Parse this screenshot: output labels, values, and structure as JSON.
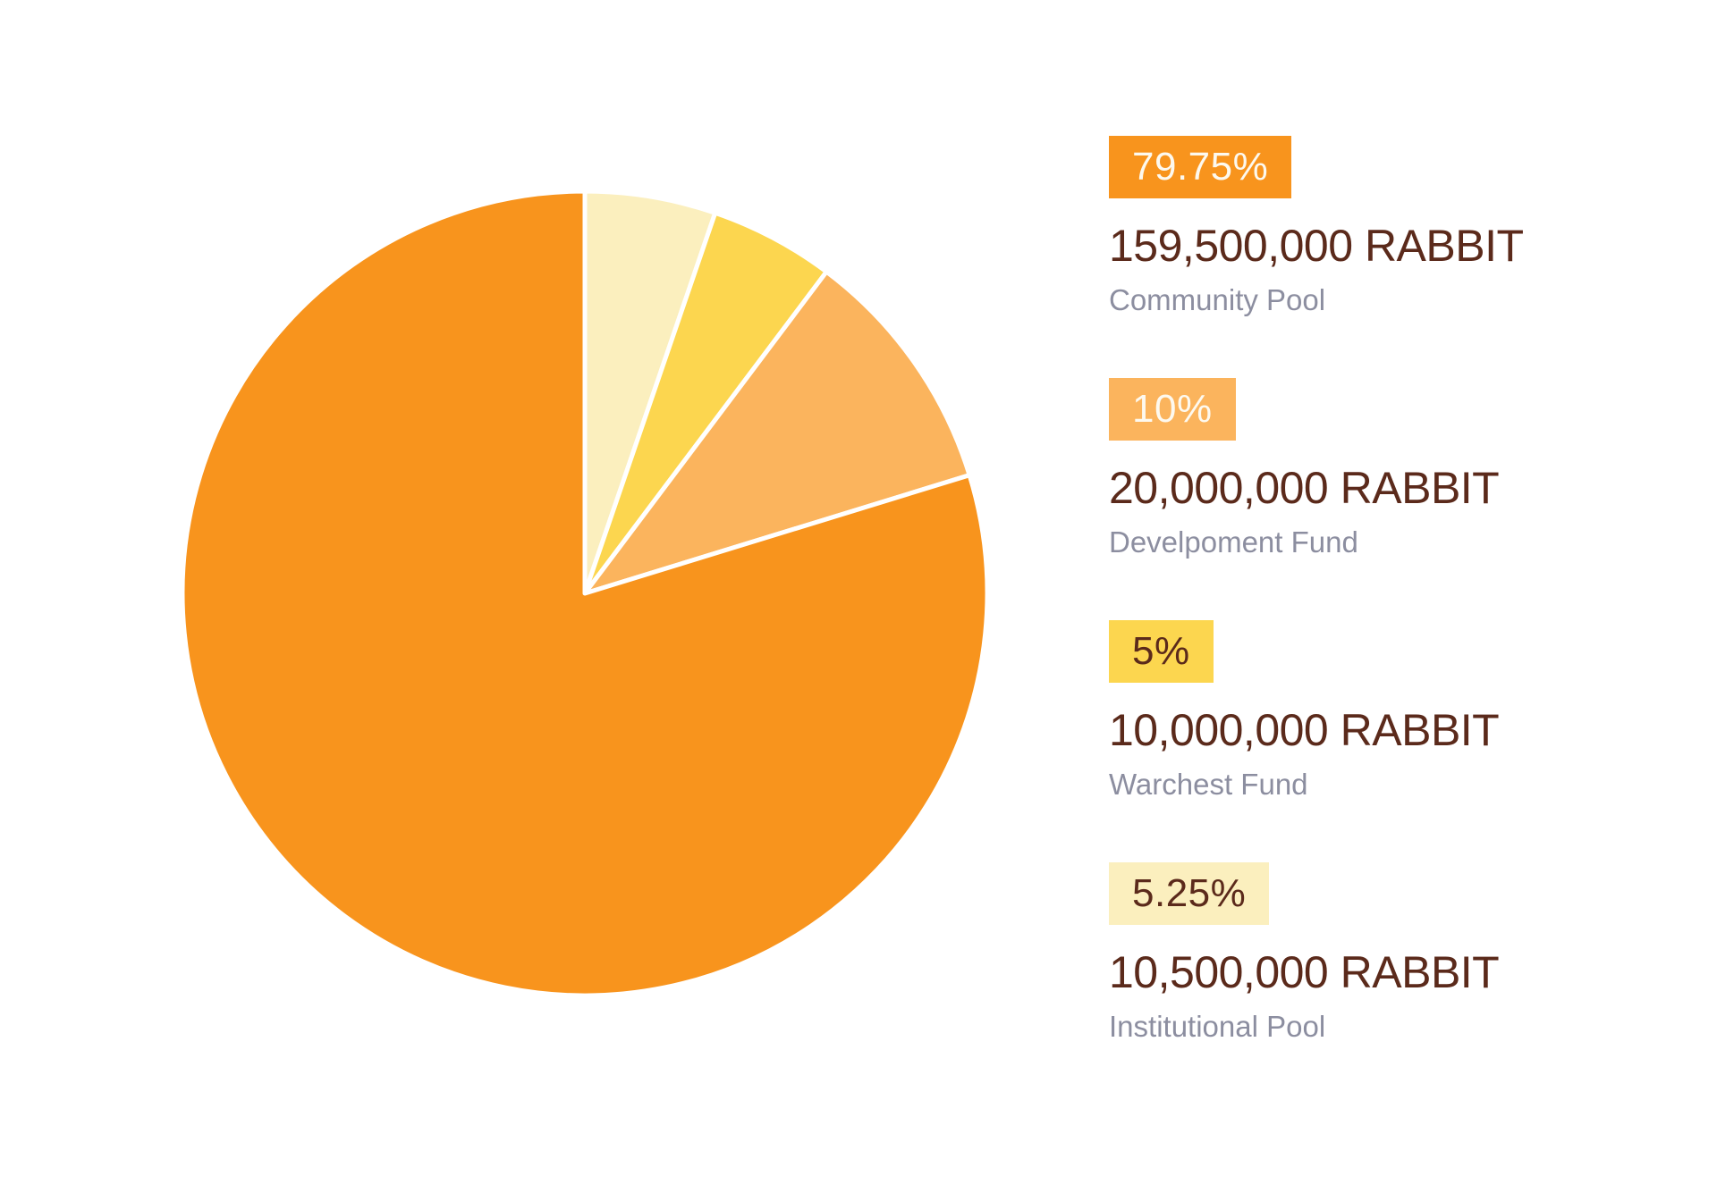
{
  "page": {
    "background": "#FFFFFF"
  },
  "chart_data": {
    "type": "pie",
    "unit": "RABBIT",
    "slices": [
      {
        "label": "Community Pool",
        "percent": 79.75,
        "percent_label": "79.75%",
        "amount": 159500000,
        "amount_label": "159,500,000 RABBIT",
        "color": "#F8941D",
        "badge_text_color": "#FDF9EF"
      },
      {
        "label": "Develpoment Fund",
        "percent": 10,
        "percent_label": "10%",
        "amount": 20000000,
        "amount_label": "20,000,000 RABBIT",
        "color": "#FBB45D",
        "badge_text_color": "#FDF9EF"
      },
      {
        "label": "Warchest Fund",
        "percent": 5,
        "percent_label": "5%",
        "amount": 10000000,
        "amount_label": "10,000,000 RABBIT",
        "color": "#FCD64F",
        "badge_text_color": "#5B2A1B"
      },
      {
        "label": "Institutional Pool",
        "percent": 5.25,
        "percent_label": "5.25%",
        "amount": 10500000,
        "amount_label": "10,500,000 RABBIT",
        "color": "#FBEFBE",
        "badge_text_color": "#5B2A1B"
      }
    ],
    "layout": {
      "start": "top",
      "direction": "clockwise",
      "draw_order": "reverse-of-legend",
      "slice_border_color": "#FFFFFF",
      "slice_border_width": 5,
      "legend_position": "right",
      "grid": false
    },
    "text_colors": {
      "amount": "#5B2A1B",
      "label": "#8C8EA0"
    }
  }
}
